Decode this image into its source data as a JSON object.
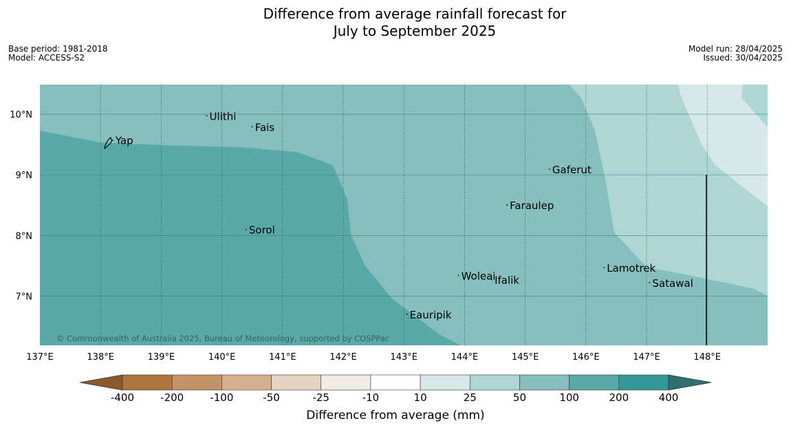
{
  "title": {
    "line1": "Difference from average rainfall forecast for",
    "line2": "July to September 2025"
  },
  "meta_left": {
    "base_period": "Base period: 1981-2018",
    "model": "Model: ACCESS-S2"
  },
  "meta_right": {
    "model_run": "Model run: 28/04/2025",
    "issued": "Issued: 30/04/2025"
  },
  "map": {
    "lon_range": [
      137,
      149
    ],
    "lat_range": [
      6.2,
      10.5
    ],
    "lon_ticks": [
      137,
      138,
      139,
      140,
      141,
      142,
      143,
      144,
      145,
      146,
      147,
      148
    ],
    "lon_tick_labels": [
      "137°E",
      "138°E",
      "139°E",
      "140°E",
      "141°E",
      "142°E",
      "143°E",
      "144°E",
      "145°E",
      "146°E",
      "147°E",
      "148°E"
    ],
    "lat_ticks": [
      7,
      8,
      9,
      10
    ],
    "lat_tick_labels": [
      "7°N",
      "8°N",
      "9°N",
      "10°N"
    ],
    "grid": true,
    "copyright": "© Commonwealth of Australia 2025, Bureau of Meteorology, supported by COSPPac",
    "places": [
      {
        "name": "Yap",
        "lon": 138.2,
        "lat": 9.55
      },
      {
        "name": "Ulithi",
        "lon": 139.75,
        "lat": 9.95
      },
      {
        "name": "Fais",
        "lon": 140.5,
        "lat": 9.77
      },
      {
        "name": "Gaferut",
        "lon": 145.4,
        "lat": 9.07
      },
      {
        "name": "Faraulep",
        "lon": 144.7,
        "lat": 8.48
      },
      {
        "name": "Sorol",
        "lon": 140.4,
        "lat": 8.08
      },
      {
        "name": "Woleai",
        "lon": 143.9,
        "lat": 7.32
      },
      {
        "name": "Ifalik",
        "lon": 144.45,
        "lat": 7.25
      },
      {
        "name": "Lamotrek",
        "lon": 146.3,
        "lat": 7.45
      },
      {
        "name": "Satawal",
        "lon": 147.05,
        "lat": 7.2
      },
      {
        "name": "Eauripik",
        "lon": 143.05,
        "lat": 6.68
      }
    ]
  },
  "colorbar": {
    "labels": [
      "-400",
      "-200",
      "-100",
      "-50",
      "-25",
      "-10",
      "10",
      "25",
      "50",
      "100",
      "200",
      "400"
    ],
    "colors": [
      "#8a5a2b",
      "#b0743f",
      "#c49269",
      "#d5b08f",
      "#e6d2c0",
      "#f1ede6",
      "#ffffff",
      "#d6e9e8",
      "#aed6d5",
      "#86bfbe",
      "#5aa9a9",
      "#339797",
      "#2f6f6e"
    ],
    "label": "Difference from average (mm)"
  }
}
